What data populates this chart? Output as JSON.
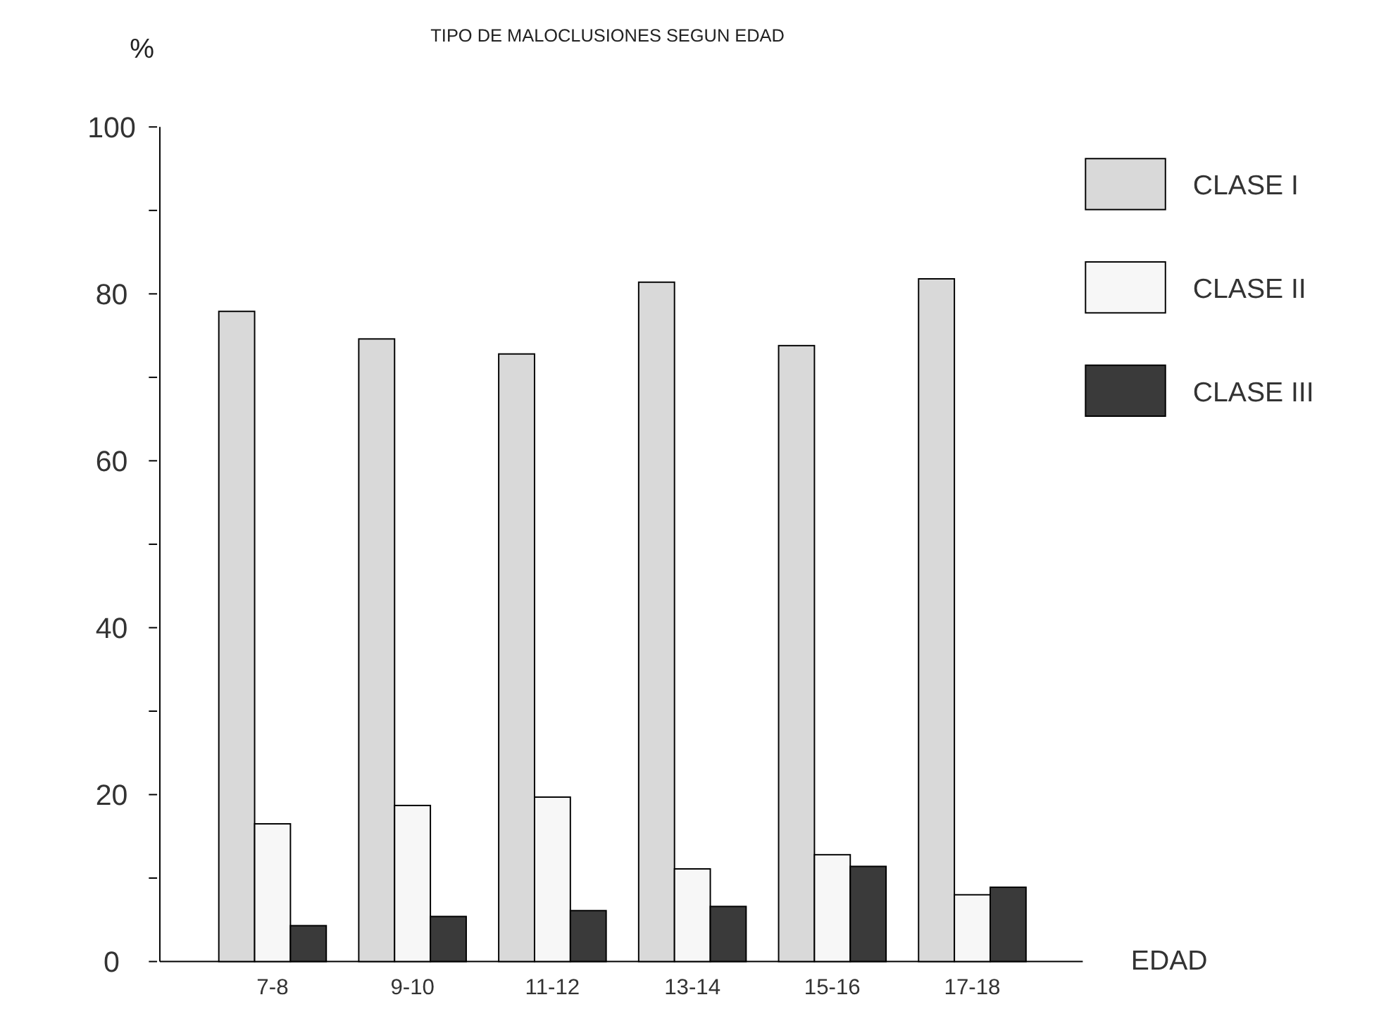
{
  "chart_data": {
    "type": "bar",
    "title": "TIPO DE MALOCLUSIONES SEGUN EDAD",
    "xlabel": "EDAD",
    "ylabel": "%",
    "categories": [
      "7-8",
      "9-10",
      "11-12",
      "13-14",
      "15-16",
      "17-18"
    ],
    "series": [
      {
        "name": "CLASE I",
        "color": "#d9d9d9",
        "values": [
          77.9,
          74.6,
          72.8,
          81.4,
          73.8,
          81.8
        ]
      },
      {
        "name": "CLASE II",
        "color": "#f7f7f7",
        "values": [
          16.5,
          18.7,
          19.7,
          11.1,
          12.8,
          8.0
        ]
      },
      {
        "name": "CLASE III",
        "color": "#3a3a3a",
        "values": [
          4.3,
          5.4,
          6.1,
          6.6,
          11.4,
          8.9
        ]
      }
    ],
    "ylim": [
      0,
      100
    ],
    "yticks": [
      0,
      {
        "value": 10,
        "label": null
      },
      20,
      {
        "value": 30,
        "label": null
      },
      40,
      {
        "value": 50,
        "label": null
      },
      60,
      {
        "value": 70,
        "label": null
      },
      80,
      {
        "value": 90,
        "label": null
      },
      100
    ],
    "legend": "top right",
    "grid": false
  }
}
